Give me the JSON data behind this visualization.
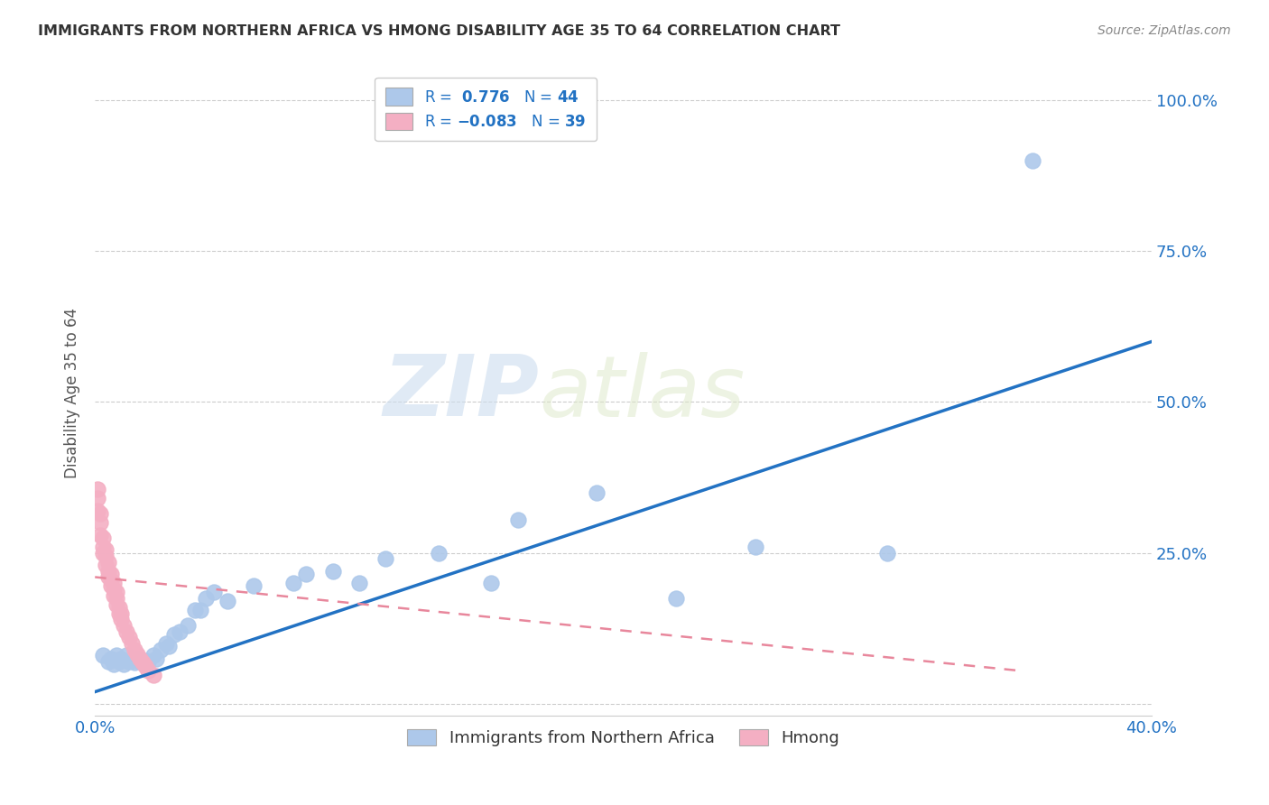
{
  "title": "IMMIGRANTS FROM NORTHERN AFRICA VS HMONG DISABILITY AGE 35 TO 64 CORRELATION CHART",
  "source": "Source: ZipAtlas.com",
  "ylabel": "Disability Age 35 to 64",
  "xlim": [
    0.0,
    0.4
  ],
  "ylim": [
    -0.02,
    1.05
  ],
  "xticks": [
    0.0,
    0.1,
    0.2,
    0.3,
    0.4
  ],
  "xticklabels": [
    "0.0%",
    "",
    "",
    "",
    "40.0%"
  ],
  "yticks": [
    0.0,
    0.25,
    0.5,
    0.75,
    1.0
  ],
  "yticklabels": [
    "",
    "25.0%",
    "50.0%",
    "75.0%",
    "100.0%"
  ],
  "blue_R": 0.776,
  "blue_N": 44,
  "pink_R": -0.083,
  "pink_N": 39,
  "blue_color": "#adc8ea",
  "pink_color": "#f4afc3",
  "blue_line_color": "#2272c3",
  "pink_line_color": "#e8879c",
  "watermark_zip": "ZIP",
  "watermark_atlas": "atlas",
  "legend_label_blue": "Immigrants from Northern Africa",
  "legend_label_pink": "Hmong",
  "blue_scatter_x": [
    0.003,
    0.005,
    0.006,
    0.007,
    0.008,
    0.009,
    0.01,
    0.011,
    0.012,
    0.013,
    0.014,
    0.015,
    0.016,
    0.017,
    0.018,
    0.019,
    0.02,
    0.022,
    0.023,
    0.025,
    0.027,
    0.028,
    0.03,
    0.032,
    0.035,
    0.038,
    0.04,
    0.042,
    0.045,
    0.05,
    0.06,
    0.075,
    0.08,
    0.09,
    0.1,
    0.11,
    0.13,
    0.15,
    0.16,
    0.19,
    0.22,
    0.25,
    0.3,
    0.355
  ],
  "blue_scatter_y": [
    0.08,
    0.07,
    0.075,
    0.065,
    0.08,
    0.07,
    0.075,
    0.065,
    0.08,
    0.07,
    0.072,
    0.068,
    0.075,
    0.07,
    0.068,
    0.072,
    0.07,
    0.08,
    0.075,
    0.09,
    0.1,
    0.095,
    0.115,
    0.12,
    0.13,
    0.155,
    0.155,
    0.175,
    0.185,
    0.17,
    0.195,
    0.2,
    0.215,
    0.22,
    0.2,
    0.24,
    0.25,
    0.2,
    0.305,
    0.35,
    0.175,
    0.26,
    0.25,
    0.9
  ],
  "pink_scatter_x": [
    0.001,
    0.001,
    0.001,
    0.002,
    0.002,
    0.002,
    0.003,
    0.003,
    0.003,
    0.004,
    0.004,
    0.004,
    0.005,
    0.005,
    0.005,
    0.006,
    0.006,
    0.006,
    0.007,
    0.007,
    0.007,
    0.008,
    0.008,
    0.008,
    0.009,
    0.009,
    0.01,
    0.01,
    0.011,
    0.012,
    0.013,
    0.014,
    0.015,
    0.016,
    0.017,
    0.018,
    0.019,
    0.02,
    0.022
  ],
  "pink_scatter_y": [
    0.32,
    0.34,
    0.355,
    0.28,
    0.3,
    0.315,
    0.25,
    0.26,
    0.275,
    0.23,
    0.245,
    0.255,
    0.21,
    0.22,
    0.235,
    0.195,
    0.205,
    0.215,
    0.18,
    0.19,
    0.2,
    0.165,
    0.175,
    0.185,
    0.15,
    0.16,
    0.14,
    0.15,
    0.13,
    0.12,
    0.11,
    0.1,
    0.09,
    0.082,
    0.075,
    0.068,
    0.062,
    0.055,
    0.048
  ],
  "blue_line_x": [
    0.0,
    0.4
  ],
  "blue_line_y": [
    0.02,
    0.6
  ],
  "pink_line_x": [
    0.0,
    0.35
  ],
  "pink_line_y": [
    0.21,
    0.055
  ]
}
